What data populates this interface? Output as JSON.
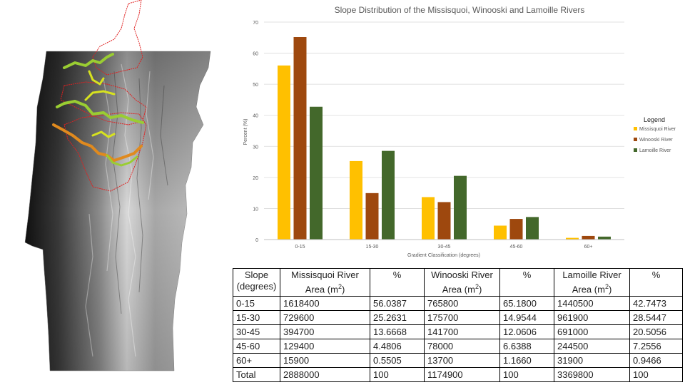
{
  "chart_data": {
    "type": "bar",
    "title": "Slope Distribution of the Missisquoi, Winooski and Lamoille Rivers",
    "xlabel": "Gradient Classification (degrees)",
    "ylabel": "Percent (%)",
    "ylim": [
      0,
      70
    ],
    "yticks": [
      0,
      10,
      20,
      30,
      40,
      50,
      60,
      70
    ],
    "categories": [
      "0-15",
      "15-30",
      "30-45",
      "45-60",
      "60+"
    ],
    "legend_title": "Legend",
    "legend_position": "right",
    "grid": true,
    "series": [
      {
        "name": "Missisquoi River",
        "color": "#FFC000",
        "values": [
          56.0387,
          25.2631,
          13.6668,
          4.4806,
          0.5505
        ]
      },
      {
        "name": "Winooski River",
        "color": "#9E480E",
        "values": [
          65.18,
          14.9544,
          12.0606,
          6.6388,
          1.166
        ]
      },
      {
        "name": "Lamoille River",
        "color": "#43682B",
        "values": [
          42.7473,
          28.5447,
          20.5056,
          7.2556,
          0.9466
        ]
      }
    ]
  },
  "table": {
    "headers": [
      [
        "Slope",
        "(degrees)"
      ],
      [
        "Missisquoi River",
        "Area (m2)"
      ],
      [
        "%",
        ""
      ],
      [
        "Winooski River",
        "Area (m2)"
      ],
      [
        "%",
        ""
      ],
      [
        "Lamoille River",
        "Area (m2)"
      ],
      [
        "%",
        ""
      ]
    ],
    "rows": [
      [
        "0-15",
        "1618400",
        "56.0387",
        "765800",
        "65.1800",
        "1440500",
        "42.7473"
      ],
      [
        "15-30",
        "729600",
        "25.2631",
        "175700",
        "14.9544",
        "961900",
        "28.5447"
      ],
      [
        "30-45",
        "394700",
        "13.6668",
        "141700",
        "12.0606",
        "691000",
        "20.5056"
      ],
      [
        "45-60",
        "129400",
        "4.4806",
        "78000",
        "6.6388",
        "244500",
        "7.2556"
      ],
      [
        "60+",
        "15900",
        "0.5505",
        "13700",
        "1.1660",
        "31900",
        "0.9466"
      ],
      [
        "Total",
        "2888000",
        "100",
        "1174900",
        "100",
        "3369800",
        "100"
      ]
    ]
  },
  "map": {
    "kind": "grayscale elevation map",
    "watershed_outline_color": "#E02020",
    "river_colors": [
      "#9ACD32",
      "#D7E21F",
      "#E08A1E"
    ]
  }
}
